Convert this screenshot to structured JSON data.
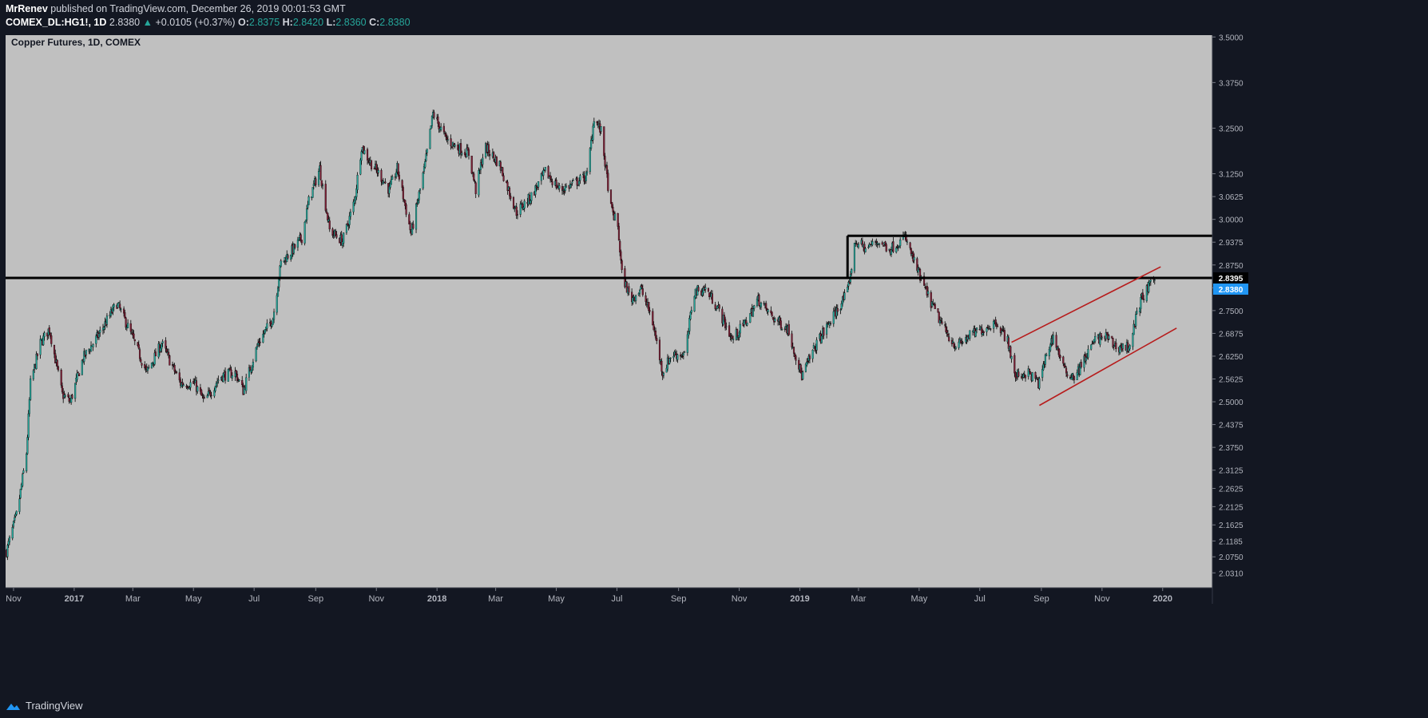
{
  "header": {
    "author": "MrRenev",
    "published": "published on TradingView.com, December 26, 2019 00:01:53 GMT",
    "symbol": "COMEX_DL:HG1!, 1D",
    "last": "2.8380",
    "arrow": "▲",
    "change": "+0.0105 (+0.37%)",
    "o_label": "O:",
    "o_val": "2.8375",
    "h_label": "H:",
    "h_val": "2.8420",
    "l_label": "L:",
    "l_val": "2.8360",
    "c_label": "C:",
    "c_val": "2.8380"
  },
  "footer": {
    "brand": "TradingView"
  },
  "colors": {
    "background": "#131722",
    "pane": "#c0c0c0",
    "up_candle": "#26a69a",
    "down_candle": "#7b1f35",
    "wick": "#000000",
    "channel": "#b71c1c",
    "last_price_tag": "#2196f3"
  },
  "chart_data": {
    "type": "candlestick",
    "title": "Copper Futures, 1D, COMEX",
    "timeframe": "1D",
    "ylim": [
      1.99,
      3.505
    ],
    "y_ticks": [
      "3.5000",
      "3.3750",
      "3.2500",
      "3.1250",
      "3.0625",
      "3.0000",
      "2.9375",
      "2.8750",
      "2.8125",
      "2.7500",
      "2.6875",
      "2.6250",
      "2.5625",
      "2.5000",
      "2.4375",
      "2.3750",
      "2.3125",
      "2.2625",
      "2.2125",
      "2.1625",
      "2.1185",
      "2.0750",
      "2.0310"
    ],
    "x_ticks": [
      {
        "label": "Nov",
        "date": "2016-11-01"
      },
      {
        "label": "2017",
        "date": "2017-01-01"
      },
      {
        "label": "Mar",
        "date": "2017-03-01"
      },
      {
        "label": "May",
        "date": "2017-05-01"
      },
      {
        "label": "Jul",
        "date": "2017-07-01"
      },
      {
        "label": "Sep",
        "date": "2017-09-01"
      },
      {
        "label": "Nov",
        "date": "2017-11-01"
      },
      {
        "label": "2018",
        "date": "2018-01-01"
      },
      {
        "label": "Mar",
        "date": "2018-03-01"
      },
      {
        "label": "May",
        "date": "2018-05-01"
      },
      {
        "label": "Jul",
        "date": "2018-07-01"
      },
      {
        "label": "Sep",
        "date": "2018-09-01"
      },
      {
        "label": "Nov",
        "date": "2018-11-01"
      },
      {
        "label": "2019",
        "date": "2019-01-01"
      },
      {
        "label": "Mar",
        "date": "2019-03-01"
      },
      {
        "label": "May",
        "date": "2019-05-01"
      },
      {
        "label": "Jul",
        "date": "2019-07-01"
      },
      {
        "label": "Sep",
        "date": "2019-09-01"
      },
      {
        "label": "Nov",
        "date": "2019-11-01"
      },
      {
        "label": "2020",
        "date": "2020-01-01"
      }
    ],
    "price_path": [
      [
        "2016-10-25",
        2.09
      ],
      [
        "2016-11-05",
        2.2
      ],
      [
        "2016-11-14",
        2.36
      ],
      [
        "2016-11-18",
        2.55
      ],
      [
        "2016-11-28",
        2.66
      ],
      [
        "2016-12-07",
        2.7
      ],
      [
        "2016-12-20",
        2.52
      ],
      [
        "2016-12-28",
        2.5
      ],
      [
        "2017-01-10",
        2.62
      ],
      [
        "2017-01-25",
        2.68
      ],
      [
        "2017-02-13",
        2.77
      ],
      [
        "2017-02-25",
        2.7
      ],
      [
        "2017-03-15",
        2.58
      ],
      [
        "2017-03-30",
        2.66
      ],
      [
        "2017-04-18",
        2.55
      ],
      [
        "2017-05-02",
        2.55
      ],
      [
        "2017-05-12",
        2.5
      ],
      [
        "2017-05-28",
        2.57
      ],
      [
        "2017-06-12",
        2.58
      ],
      [
        "2017-06-20",
        2.53
      ],
      [
        "2017-07-05",
        2.66
      ],
      [
        "2017-07-20",
        2.73
      ],
      [
        "2017-07-28",
        2.88
      ],
      [
        "2017-08-10",
        2.92
      ],
      [
        "2017-08-18",
        2.95
      ],
      [
        "2017-08-25",
        3.05
      ],
      [
        "2017-09-05",
        3.14
      ],
      [
        "2017-09-15",
        2.97
      ],
      [
        "2017-09-28",
        2.94
      ],
      [
        "2017-10-10",
        3.05
      ],
      [
        "2017-10-17",
        3.2
      ],
      [
        "2017-10-25",
        3.16
      ],
      [
        "2017-11-05",
        3.12
      ],
      [
        "2017-11-14",
        3.08
      ],
      [
        "2017-11-22",
        3.14
      ],
      [
        "2017-12-06",
        2.96
      ],
      [
        "2017-12-20",
        3.15
      ],
      [
        "2017-12-28",
        3.29
      ],
      [
        "2018-01-10",
        3.22
      ],
      [
        "2018-01-20",
        3.2
      ],
      [
        "2018-02-02",
        3.18
      ],
      [
        "2018-02-09",
        3.08
      ],
      [
        "2018-02-18",
        3.2
      ],
      [
        "2018-03-05",
        3.15
      ],
      [
        "2018-03-22",
        3.02
      ],
      [
        "2018-04-05",
        3.06
      ],
      [
        "2018-04-20",
        3.13
      ],
      [
        "2018-05-05",
        3.08
      ],
      [
        "2018-05-20",
        3.1
      ],
      [
        "2018-06-01",
        3.12
      ],
      [
        "2018-06-08",
        3.28
      ],
      [
        "2018-06-15",
        3.24
      ],
      [
        "2018-06-25",
        3.03
      ],
      [
        "2018-07-02",
        2.98
      ],
      [
        "2018-07-06",
        2.85
      ],
      [
        "2018-07-15",
        2.78
      ],
      [
        "2018-07-25",
        2.81
      ],
      [
        "2018-08-05",
        2.73
      ],
      [
        "2018-08-16",
        2.58
      ],
      [
        "2018-08-25",
        2.63
      ],
      [
        "2018-09-08",
        2.63
      ],
      [
        "2018-09-16",
        2.8
      ],
      [
        "2018-09-28",
        2.81
      ],
      [
        "2018-10-10",
        2.76
      ],
      [
        "2018-10-25",
        2.67
      ],
      [
        "2018-11-08",
        2.72
      ],
      [
        "2018-11-20",
        2.78
      ],
      [
        "2018-12-05",
        2.73
      ],
      [
        "2018-12-20",
        2.7
      ],
      [
        "2019-01-03",
        2.57
      ],
      [
        "2019-01-18",
        2.66
      ],
      [
        "2019-02-05",
        2.74
      ],
      [
        "2019-02-18",
        2.8
      ],
      [
        "2019-02-26",
        2.94
      ],
      [
        "2019-03-08",
        2.92
      ],
      [
        "2019-03-20",
        2.94
      ],
      [
        "2019-04-02",
        2.92
      ],
      [
        "2019-04-17",
        2.95
      ],
      [
        "2019-04-25",
        2.89
      ],
      [
        "2019-05-05",
        2.82
      ],
      [
        "2019-05-15",
        2.76
      ],
      [
        "2019-05-28",
        2.69
      ],
      [
        "2019-06-08",
        2.65
      ],
      [
        "2019-06-20",
        2.68
      ],
      [
        "2019-07-05",
        2.7
      ],
      [
        "2019-07-18",
        2.72
      ],
      [
        "2019-07-30",
        2.66
      ],
      [
        "2019-08-05",
        2.57
      ],
      [
        "2019-08-18",
        2.58
      ],
      [
        "2019-08-30",
        2.55
      ],
      [
        "2019-09-06",
        2.63
      ],
      [
        "2019-09-13",
        2.68
      ],
      [
        "2019-09-25",
        2.58
      ],
      [
        "2019-10-05",
        2.57
      ],
      [
        "2019-10-15",
        2.62
      ],
      [
        "2019-10-25",
        2.67
      ],
      [
        "2019-11-05",
        2.68
      ],
      [
        "2019-11-15",
        2.65
      ],
      [
        "2019-11-28",
        2.65
      ],
      [
        "2019-12-10",
        2.78
      ],
      [
        "2019-12-24",
        2.838
      ]
    ],
    "horizontal_lines": [
      {
        "price": 2.8395,
        "label": "2.8395"
      },
      {
        "price": 2.955,
        "from": "2019-02-18"
      }
    ],
    "range_box": {
      "from": "2019-02-18",
      "top": 2.955,
      "bottom": 2.8395
    },
    "channel_lines": [
      {
        "from": [
          "2019-08-02",
          2.663
        ],
        "to": [
          "2019-12-30",
          2.87
        ]
      },
      {
        "from": [
          "2019-08-30",
          2.49
        ],
        "to": [
          "2020-01-15",
          2.702
        ]
      }
    ],
    "last_price": {
      "value": "2.8380"
    },
    "grid": false
  }
}
